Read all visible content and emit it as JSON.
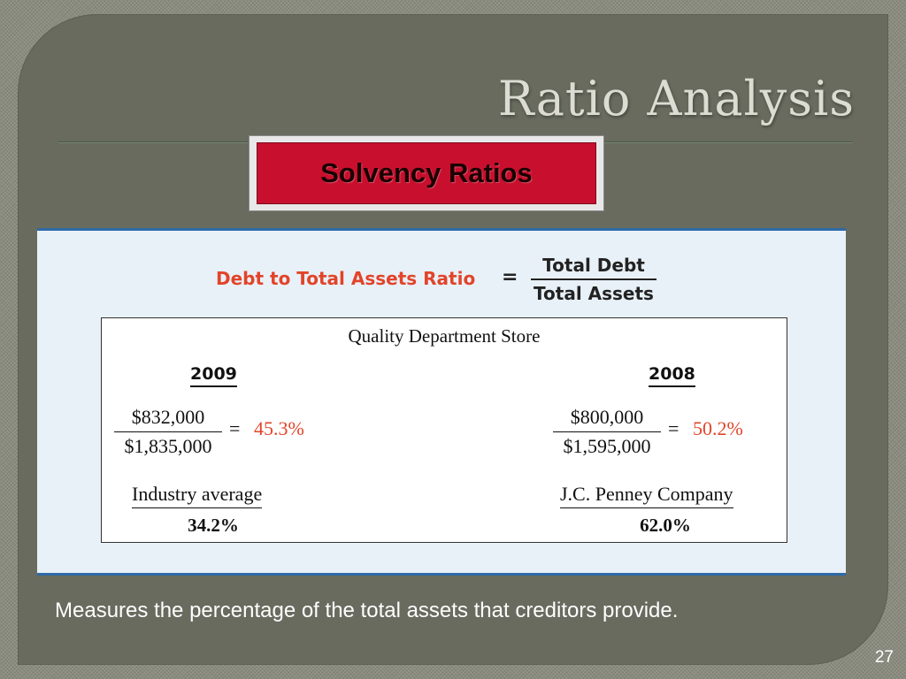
{
  "slide": {
    "title": "Ratio Analysis",
    "banner": "Solvency Ratios",
    "caption": "Measures the percentage of the total assets that creditors provide.",
    "page_number": "27"
  },
  "formula": {
    "name": "Debt to Total Assets Ratio",
    "equals": "=",
    "numerator": "Total Debt",
    "denominator": "Total Assets"
  },
  "example": {
    "company": "Quality Department Store",
    "equals": "=",
    "years": [
      {
        "year": "2009",
        "numerator": "$832,000",
        "denominator": "$1,835,000",
        "result": "45.3%",
        "comparison_label": "Industry average",
        "comparison_value": "34.2%"
      },
      {
        "year": "2008",
        "numerator": "$800,000",
        "denominator": "$1,595,000",
        "result": "50.2%",
        "comparison_label": "J.C. Penney Company",
        "comparison_value": "62.0%"
      }
    ]
  },
  "colors": {
    "accent_red": "#e2442a",
    "banner_red": "#c8102e",
    "panel_border_blue": "#2e6aa6"
  }
}
